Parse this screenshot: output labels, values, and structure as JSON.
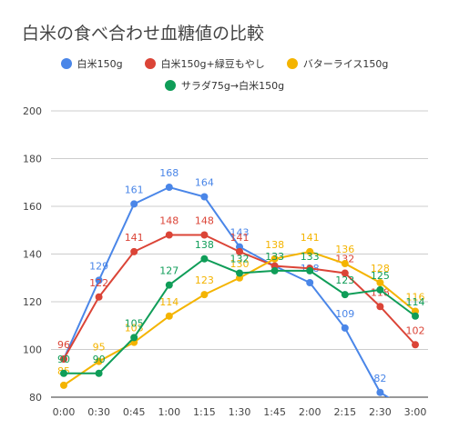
{
  "chart_data": {
    "type": "line",
    "title": "白米の食べ合わせ血糖値の比較",
    "categories": [
      "0:00",
      "0:30",
      "0:45",
      "1:00",
      "1:15",
      "1:30",
      "1:45",
      "2:00",
      "2:15",
      "2:30",
      "3:00"
    ],
    "ylim": [
      80,
      200
    ],
    "yticks": [
      "80",
      "100",
      "120",
      "140",
      "160",
      "180",
      "200"
    ],
    "grid": true,
    "legend_position": "top",
    "xlabel": "",
    "ylabel": "",
    "series": [
      {
        "name": "白米150g",
        "color": "#4A86E8",
        "values": [
          96,
          129,
          161,
          168,
          164,
          143,
          135,
          128,
          109,
          82,
          73
        ],
        "labels": [
          "",
          "129",
          "161",
          "168",
          "164",
          "143",
          "",
          "128",
          "109",
          "82",
          ""
        ]
      },
      {
        "name": "白米150g+緑豆もやし",
        "color": "#DB4437",
        "values": [
          96,
          122,
          141,
          148,
          148,
          141,
          135,
          134,
          132,
          118,
          102
        ],
        "labels": [
          "96",
          "122",
          "141",
          "148",
          "148",
          "141",
          "",
          "",
          "132",
          "118",
          "102"
        ]
      },
      {
        "name": "バターライス150g",
        "color": "#F4B400",
        "values": [
          85,
          95,
          103,
          114,
          123,
          130,
          138,
          141,
          136,
          128,
          116
        ],
        "labels": [
          "85",
          "95",
          "103",
          "114",
          "123",
          "130",
          "138",
          "141",
          "136",
          "128",
          "116"
        ]
      },
      {
        "name": "サラダ75g→白米150g",
        "color": "#0F9D58",
        "values": [
          90,
          90,
          105,
          127,
          138,
          132,
          133,
          133,
          123,
          125,
          114
        ],
        "labels": [
          "90",
          "90",
          "105",
          "127",
          "138",
          "132",
          "133",
          "133",
          "123",
          "125",
          "114"
        ]
      }
    ]
  }
}
